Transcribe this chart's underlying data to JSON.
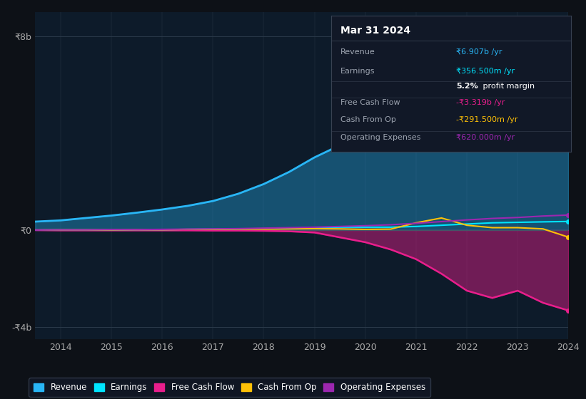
{
  "background_color": "#0d1117",
  "plot_bg_color": "#0d1b2a",
  "years": [
    2013.5,
    2014,
    2014.5,
    2015,
    2015.5,
    2016,
    2016.5,
    2017,
    2017.5,
    2018,
    2018.5,
    2019,
    2019.5,
    2020,
    2020.5,
    2021,
    2021.5,
    2022,
    2022.5,
    2023,
    2023.5,
    2024
  ],
  "revenue": [
    0.35,
    0.4,
    0.5,
    0.6,
    0.72,
    0.85,
    1.0,
    1.2,
    1.5,
    1.9,
    2.4,
    3.0,
    3.5,
    4.0,
    4.8,
    5.5,
    6.5,
    7.5,
    7.8,
    7.5,
    6.9,
    6.907
  ],
  "earnings": [
    0.0,
    0.01,
    0.01,
    0.01,
    0.02,
    0.02,
    0.03,
    0.04,
    0.05,
    0.06,
    0.08,
    0.1,
    0.12,
    0.12,
    0.12,
    0.15,
    0.2,
    0.25,
    0.3,
    0.32,
    0.34,
    0.3565
  ],
  "free_cash_flow": [
    0.0,
    -0.01,
    -0.01,
    -0.01,
    -0.01,
    -0.01,
    -0.01,
    -0.02,
    -0.02,
    -0.03,
    -0.05,
    -0.1,
    -0.3,
    -0.5,
    -0.8,
    -1.2,
    -1.8,
    -2.5,
    -2.8,
    -2.5,
    -3.0,
    -3.319
  ],
  "cash_from_op": [
    0.0,
    0.01,
    0.01,
    0.01,
    0.02,
    0.02,
    0.03,
    0.03,
    0.04,
    0.04,
    0.05,
    0.06,
    0.05,
    0.03,
    0.04,
    0.3,
    0.5,
    0.2,
    0.1,
    0.1,
    0.05,
    -0.2915
  ],
  "operating_expenses": [
    0.0,
    0.01,
    0.01,
    0.02,
    0.02,
    0.03,
    0.04,
    0.05,
    0.06,
    0.08,
    0.1,
    0.12,
    0.15,
    0.18,
    0.22,
    0.28,
    0.35,
    0.42,
    0.48,
    0.52,
    0.58,
    0.62
  ],
  "revenue_color": "#29b6f6",
  "earnings_color": "#00e5ff",
  "fcf_color": "#e91e8c",
  "cashfromop_color": "#ffc107",
  "opex_color": "#9c27b0",
  "revenue_fill_alpha": 0.35,
  "fcf_fill_alpha": 0.45,
  "ylim_min": -4.5,
  "ylim_max": 9.0,
  "xtick_years": [
    2014,
    2015,
    2016,
    2017,
    2018,
    2019,
    2020,
    2021,
    2022,
    2023,
    2024
  ],
  "info_box": {
    "title": "Mar 31 2024",
    "rows": [
      {
        "label": "Revenue",
        "value": "₹6.907b /yr",
        "value_color": "#29b6f6"
      },
      {
        "label": "Earnings",
        "value": "₹356.500m /yr",
        "value_color": "#00e5ff"
      },
      {
        "label": "",
        "value": "5.2% profit margin",
        "value_color": "#ffffff",
        "bold_part": "5.2%"
      },
      {
        "label": "Free Cash Flow",
        "value": "-₹3.319b /yr",
        "value_color": "#e91e8c"
      },
      {
        "label": "Cash From Op",
        "value": "-₹291.500m /yr",
        "value_color": "#ffc107"
      },
      {
        "label": "Operating Expenses",
        "value": "₹620.000m /yr",
        "value_color": "#9c27b0"
      }
    ]
  },
  "legend_items": [
    {
      "label": "Revenue",
      "color": "#29b6f6"
    },
    {
      "label": "Earnings",
      "color": "#00e5ff"
    },
    {
      "label": "Free Cash Flow",
      "color": "#e91e8c"
    },
    {
      "label": "Cash From Op",
      "color": "#ffc107"
    },
    {
      "label": "Operating Expenses",
      "color": "#9c27b0"
    }
  ]
}
